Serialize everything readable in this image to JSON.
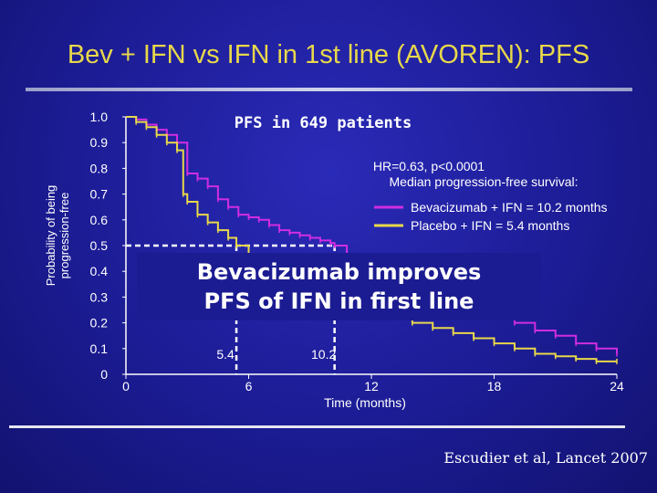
{
  "title": "Bev + IFN vs IFN in 1st line (AVOREN): PFS",
  "citation": "Escudier et al, Lancet 2007",
  "callout": {
    "line1": "Bevacizumab improves",
    "line2": "PFS of IFN in first line"
  },
  "chart_data": {
    "type": "line",
    "title": "PFS in 649 patients",
    "xlabel": "Time (months)",
    "ylabel": [
      "Probability of being",
      "progression-free"
    ],
    "xlim": [
      0,
      24
    ],
    "ylim": [
      0,
      1
    ],
    "x_ticks": [
      0,
      6,
      12,
      18,
      24
    ],
    "y_ticks": [
      "0",
      "0.1",
      "0.2",
      "0.3",
      "0.4",
      "0.5",
      "0.6",
      "0.7",
      "0.8",
      "0.9",
      "1.0"
    ],
    "annotation_lines": [
      "HR=0.63, p<0.0001",
      "Median progression-free survival:"
    ],
    "medians": [
      {
        "label": "5.4",
        "x": 5.4,
        "y": 0.5
      },
      {
        "label": "10.2",
        "x": 10.2,
        "y": 0.5
      }
    ],
    "legend_position": "right",
    "series": [
      {
        "name": "Bevacizumab + IFN = 10.2 months",
        "color": "#d02de0",
        "x": [
          0,
          0.5,
          1,
          1.5,
          2,
          2.5,
          3,
          3.5,
          4,
          4.5,
          5,
          5.5,
          6,
          6.5,
          7,
          7.5,
          8,
          8.5,
          9,
          9.5,
          10,
          10.2,
          10.8,
          11.5,
          12,
          13,
          14,
          15,
          16,
          17,
          18,
          19,
          20,
          21,
          22,
          23,
          24
        ],
        "y": [
          1.0,
          0.99,
          0.97,
          0.95,
          0.93,
          0.9,
          0.78,
          0.76,
          0.73,
          0.68,
          0.65,
          0.62,
          0.61,
          0.6,
          0.58,
          0.56,
          0.55,
          0.54,
          0.53,
          0.52,
          0.51,
          0.5,
          0.45,
          0.43,
          0.38,
          0.35,
          0.32,
          0.3,
          0.27,
          0.25,
          0.22,
          0.2,
          0.17,
          0.15,
          0.12,
          0.1,
          0.08
        ]
      },
      {
        "name": "Placebo + IFN = 5.4 months",
        "color": "#e8d84a",
        "x": [
          0,
          0.5,
          1,
          1.5,
          2,
          2.5,
          2.8,
          3,
          3.5,
          4,
          4.5,
          5,
          5.4,
          6,
          7,
          8,
          9,
          10,
          11,
          12,
          13,
          14,
          15,
          16,
          17,
          18,
          19,
          20,
          21,
          22,
          23,
          24
        ],
        "y": [
          1.0,
          0.98,
          0.96,
          0.93,
          0.9,
          0.87,
          0.7,
          0.67,
          0.62,
          0.59,
          0.56,
          0.53,
          0.5,
          0.45,
          0.4,
          0.35,
          0.32,
          0.3,
          0.27,
          0.25,
          0.22,
          0.2,
          0.18,
          0.16,
          0.14,
          0.12,
          0.1,
          0.08,
          0.07,
          0.06,
          0.05,
          0.05
        ]
      }
    ]
  }
}
